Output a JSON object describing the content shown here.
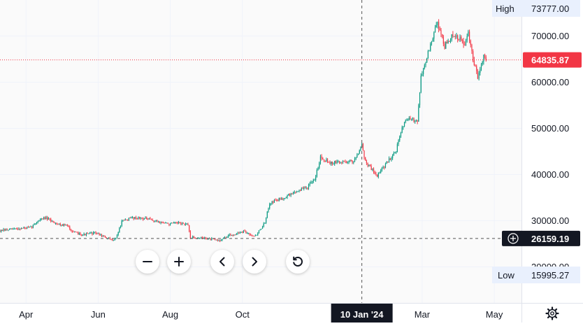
{
  "chart_data": {
    "type": "candlestick",
    "title": "",
    "xlabel": "",
    "ylabel": "",
    "x_ticks": [
      "Apr",
      "Jun",
      "Aug",
      "Oct",
      "Mar",
      "May"
    ],
    "y_ticks": [
      20000,
      30000,
      40000,
      50000,
      60000,
      70000
    ],
    "y_tick_labels": [
      "20000.00",
      "30000.00",
      "40000.00",
      "50000.00",
      "60000.00",
      "70000.00"
    ],
    "ylim": [
      12200,
      77800
    ],
    "xlim": [
      "2023-03-10",
      "2024-05-24"
    ],
    "high": {
      "label": "High",
      "value": "73777.00"
    },
    "low": {
      "label": "Low",
      "value": "15995.27"
    },
    "last_price": {
      "value": "64835.87",
      "color": "#f23645"
    },
    "crosshair": {
      "price_label": "26159.19",
      "date_label": "10 Jan '24",
      "date": "2024-01-10",
      "price": 26159.19
    },
    "colors": {
      "up": "#089981",
      "down": "#f23645",
      "grid": "#f0f3fa",
      "crosshair": "#555555"
    },
    "grid": true,
    "series": [
      {
        "type": "candlestick",
        "points": [
          {
            "date": "2023-03-10",
            "value": 27800
          },
          {
            "date": "2023-03-25",
            "value": 28300
          },
          {
            "date": "2023-04-05",
            "value": 28500
          },
          {
            "date": "2023-04-12",
            "value": 30200
          },
          {
            "date": "2023-04-17",
            "value": 30600
          },
          {
            "date": "2023-04-28",
            "value": 29300
          },
          {
            "date": "2023-05-05",
            "value": 29000
          },
          {
            "date": "2023-05-12",
            "value": 27400
          },
          {
            "date": "2023-05-20",
            "value": 27000
          },
          {
            "date": "2023-05-30",
            "value": 27400
          },
          {
            "date": "2023-06-05",
            "value": 26600
          },
          {
            "date": "2023-06-12",
            "value": 25800
          },
          {
            "date": "2023-06-16",
            "value": 26200
          },
          {
            "date": "2023-06-21",
            "value": 29800
          },
          {
            "date": "2023-06-30",
            "value": 30700
          },
          {
            "date": "2023-07-10",
            "value": 30500
          },
          {
            "date": "2023-07-20",
            "value": 29900
          },
          {
            "date": "2023-07-31",
            "value": 29300
          },
          {
            "date": "2023-08-10",
            "value": 29500
          },
          {
            "date": "2023-08-16",
            "value": 29000
          },
          {
            "date": "2023-08-18",
            "value": 26400
          },
          {
            "date": "2023-08-31",
            "value": 26200
          },
          {
            "date": "2023-09-11",
            "value": 25700
          },
          {
            "date": "2023-09-20",
            "value": 26800
          },
          {
            "date": "2023-10-02",
            "value": 27600
          },
          {
            "date": "2023-10-12",
            "value": 26700
          },
          {
            "date": "2023-10-20",
            "value": 29500
          },
          {
            "date": "2023-10-24",
            "value": 33900
          },
          {
            "date": "2023-11-05",
            "value": 35000
          },
          {
            "date": "2023-11-15",
            "value": 36300
          },
          {
            "date": "2023-11-25",
            "value": 37300
          },
          {
            "date": "2023-12-01",
            "value": 38800
          },
          {
            "date": "2023-12-06",
            "value": 43800
          },
          {
            "date": "2023-12-15",
            "value": 42500
          },
          {
            "date": "2023-12-25",
            "value": 42800
          },
          {
            "date": "2024-01-03",
            "value": 42900
          },
          {
            "date": "2024-01-10",
            "value": 46500
          },
          {
            "date": "2024-01-13",
            "value": 42800
          },
          {
            "date": "2024-01-23",
            "value": 39800
          },
          {
            "date": "2024-01-31",
            "value": 42500
          },
          {
            "date": "2024-02-08",
            "value": 45300
          },
          {
            "date": "2024-02-15",
            "value": 51800
          },
          {
            "date": "2024-02-26",
            "value": 51900
          },
          {
            "date": "2024-02-29",
            "value": 61100
          },
          {
            "date": "2024-03-08",
            "value": 68000
          },
          {
            "date": "2024-03-14",
            "value": 73000
          },
          {
            "date": "2024-03-20",
            "value": 67800
          },
          {
            "date": "2024-03-26",
            "value": 69800
          },
          {
            "date": "2024-04-01",
            "value": 69500
          },
          {
            "date": "2024-04-06",
            "value": 68200
          },
          {
            "date": "2024-04-09",
            "value": 70500
          },
          {
            "date": "2024-04-13",
            "value": 64900
          },
          {
            "date": "2024-04-17",
            "value": 61200
          },
          {
            "date": "2024-04-22",
            "value": 65900
          },
          {
            "date": "2024-04-24",
            "value": 64835.87
          }
        ]
      }
    ]
  },
  "controls": [
    {
      "name": "zoom-out-button",
      "icon": "minus-icon"
    },
    {
      "name": "zoom-in-button",
      "icon": "plus-icon"
    },
    {
      "name": "scroll-left-button",
      "icon": "chevron-left-icon"
    },
    {
      "name": "scroll-right-button",
      "icon": "chevron-right-icon"
    },
    {
      "name": "reset-chart-button",
      "icon": "reset-icon"
    }
  ],
  "settings_icon": "gear-icon",
  "crosshair_add_icon": "plus-circle-icon"
}
